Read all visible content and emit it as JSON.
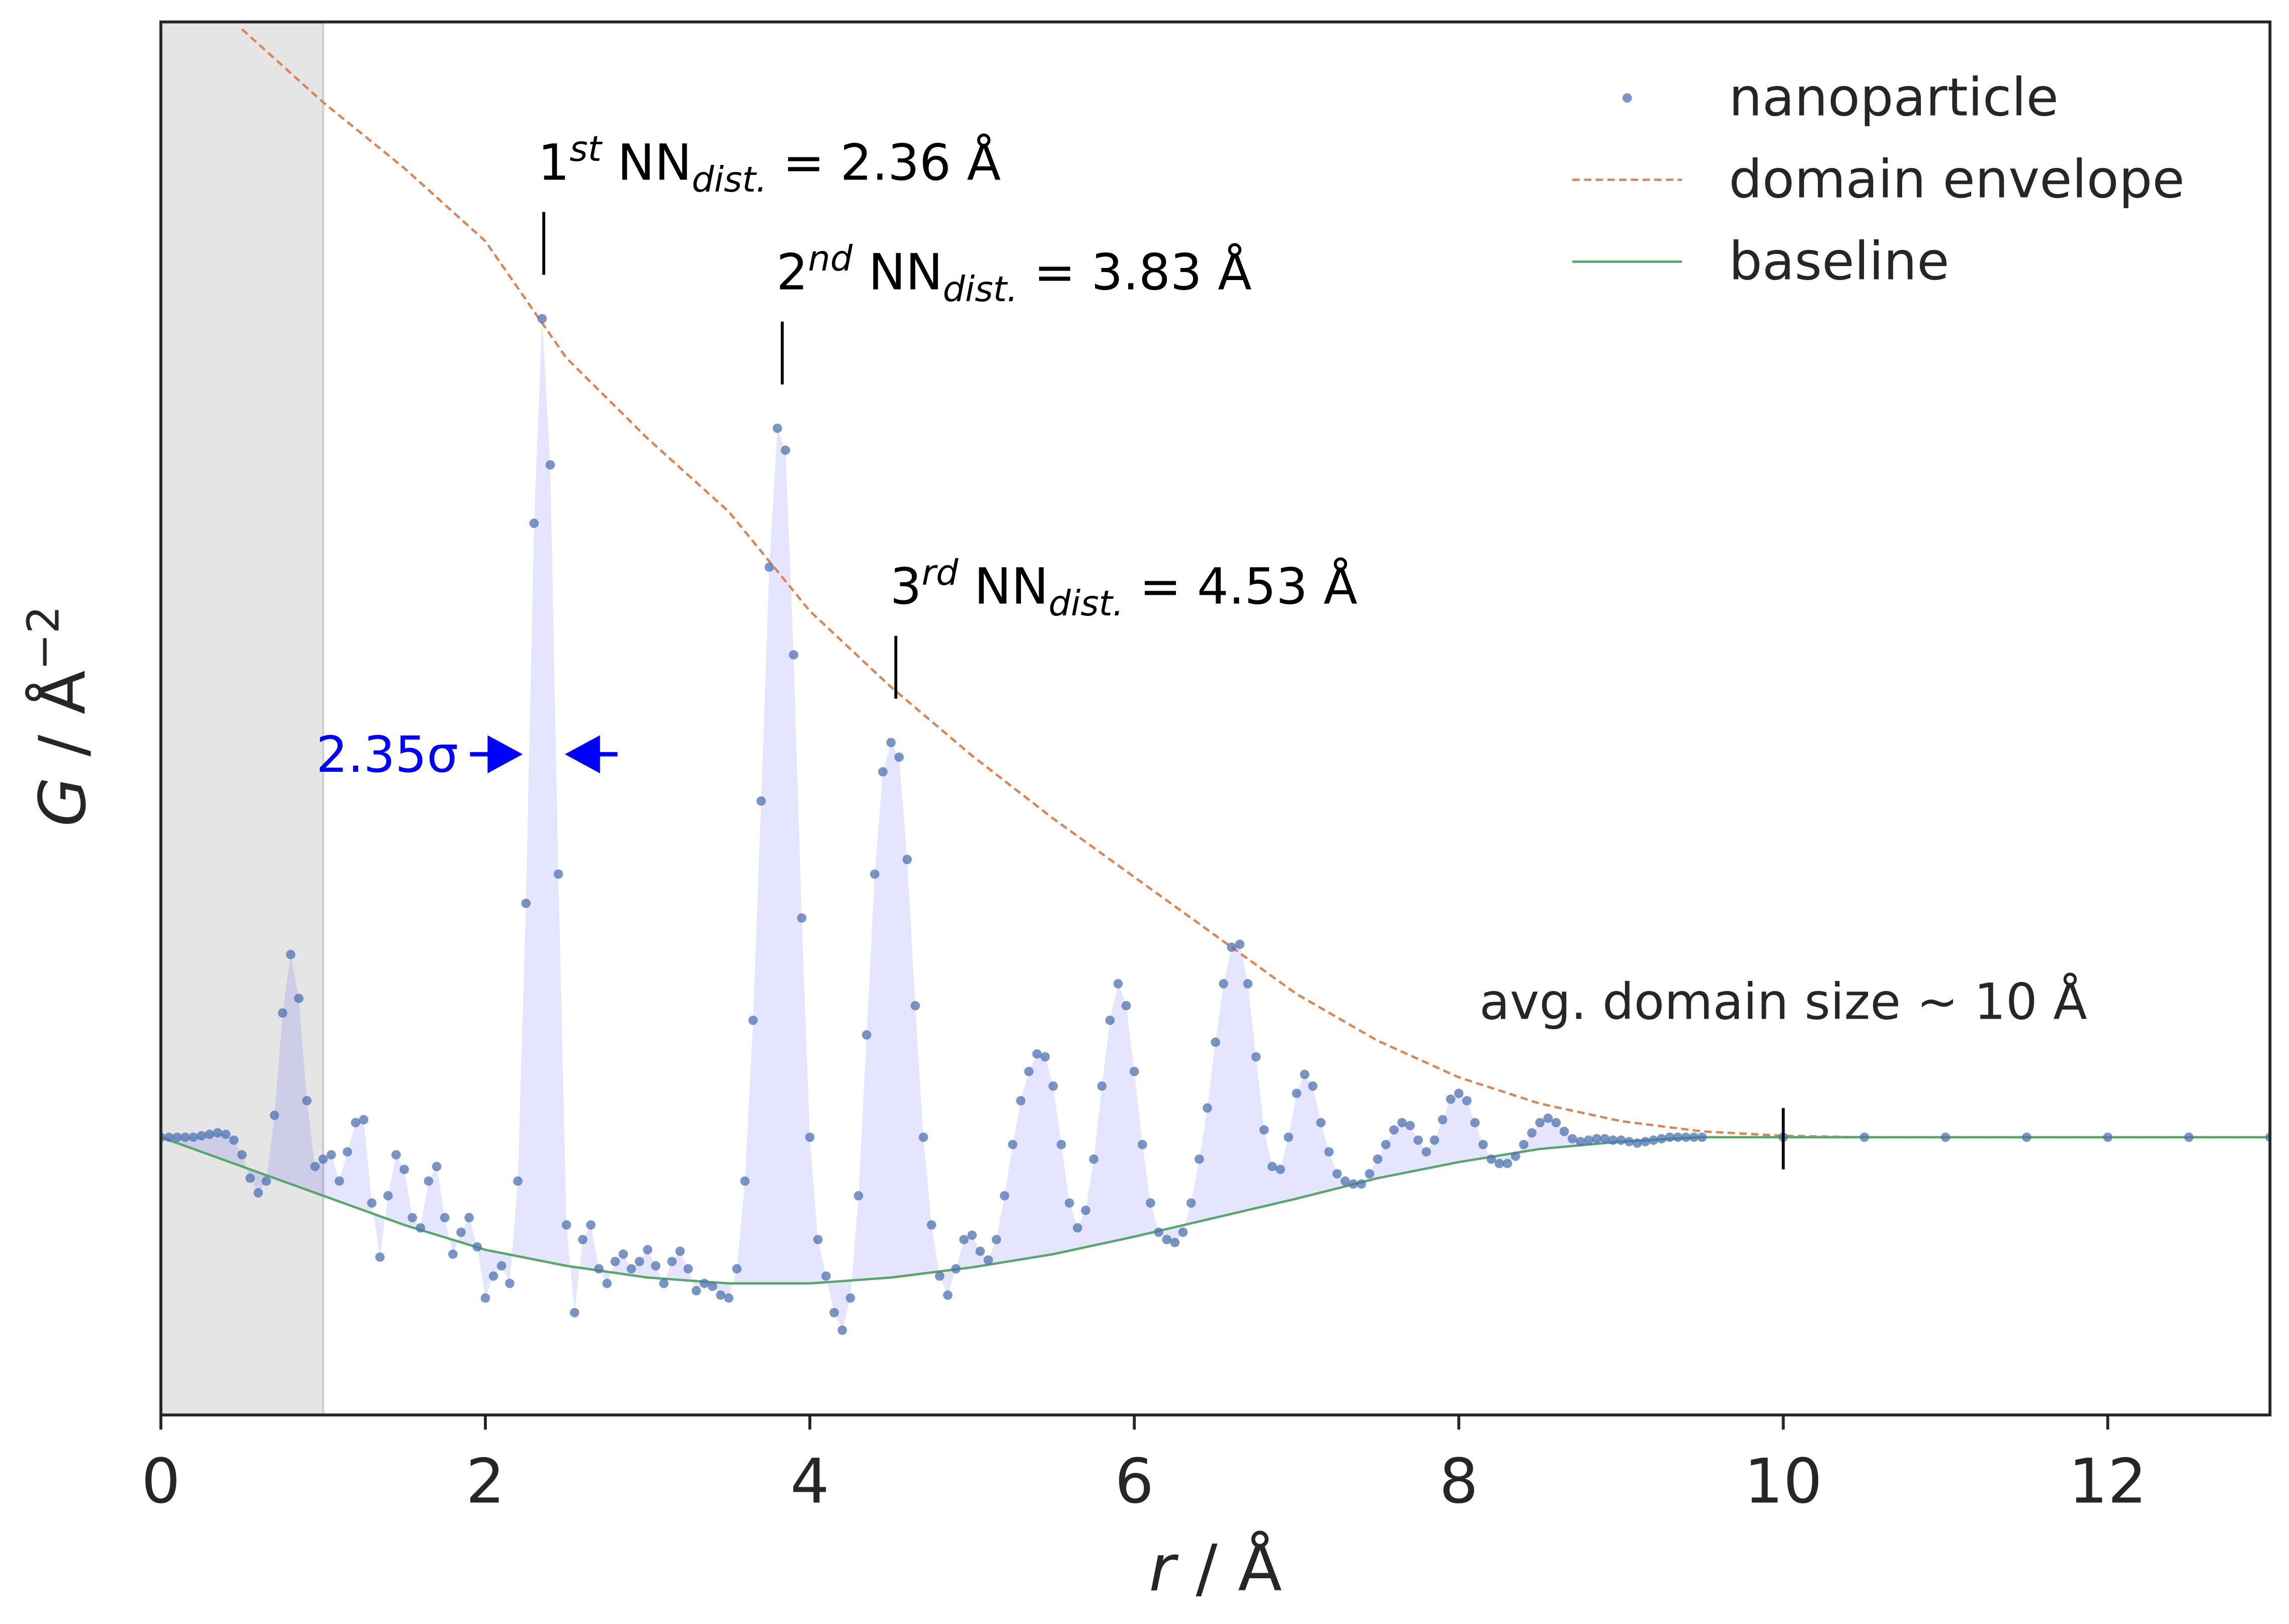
{
  "chart_data": {
    "type": "line",
    "xlabel": {
      "symbol": "r",
      "rest": " / Å"
    },
    "ylabel": {
      "symbol": "G",
      "rest": " / Å",
      "sup": "−2"
    },
    "xlim": [
      0,
      13
    ],
    "ylim": [
      -1.9,
      7.63
    ],
    "xticks": [
      0,
      2,
      4,
      6,
      8,
      10,
      12
    ],
    "shaded_xrange": [
      0,
      1
    ],
    "legend": "upper right",
    "series": [
      {
        "name": "nanoparticle",
        "style": "dots",
        "color": "#4c72b0",
        "x": [
          0,
          0.05,
          0.1,
          0.15,
          0.2,
          0.25,
          0.3,
          0.35,
          0.4,
          0.45,
          0.5,
          0.55,
          0.6,
          0.65,
          0.7,
          0.75,
          0.8,
          0.85,
          0.9,
          0.95,
          1,
          1.05,
          1.1,
          1.15,
          1.2,
          1.25,
          1.3,
          1.35,
          1.4,
          1.45,
          1.5,
          1.55,
          1.6,
          1.65,
          1.7,
          1.75,
          1.8,
          1.85,
          1.9,
          1.95,
          2,
          2.05,
          2.1,
          2.15,
          2.2,
          2.25,
          2.3,
          2.35,
          2.4,
          2.45,
          2.5,
          2.55,
          2.6,
          2.65,
          2.7,
          2.75,
          2.8,
          2.85,
          2.9,
          2.95,
          3,
          3.05,
          3.1,
          3.15,
          3.2,
          3.25,
          3.3,
          3.35,
          3.4,
          3.45,
          3.5,
          3.55,
          3.6,
          3.65,
          3.7,
          3.75,
          3.8,
          3.85,
          3.9,
          3.95,
          4,
          4.05,
          4.1,
          4.15,
          4.2,
          4.25,
          4.3,
          4.35,
          4.4,
          4.45,
          4.5,
          4.55,
          4.6,
          4.65,
          4.7,
          4.75,
          4.8,
          4.85,
          4.9,
          4.95,
          5,
          5.05,
          5.1,
          5.15,
          5.2,
          5.25,
          5.3,
          5.35,
          5.4,
          5.45,
          5.5,
          5.55,
          5.6,
          5.65,
          5.7,
          5.75,
          5.8,
          5.85,
          5.9,
          5.95,
          6,
          6.05,
          6.1,
          6.15,
          6.2,
          6.25,
          6.3,
          6.35,
          6.4,
          6.45,
          6.5,
          6.55,
          6.6,
          6.65,
          6.7,
          6.75,
          6.8,
          6.85,
          6.9,
          6.95,
          7,
          7.05,
          7.1,
          7.15,
          7.2,
          7.25,
          7.3,
          7.35,
          7.4,
          7.45,
          7.5,
          7.55,
          7.6,
          7.65,
          7.7,
          7.75,
          7.8,
          7.85,
          7.9,
          7.95,
          8,
          8.05,
          8.1,
          8.15,
          8.2,
          8.25,
          8.3,
          8.35,
          8.4,
          8.45,
          8.5,
          8.55,
          8.6,
          8.65,
          8.7,
          8.75,
          8.8,
          8.85,
          8.9,
          8.95,
          9,
          9.05,
          9.1,
          9.15,
          9.2,
          9.25,
          9.3,
          9.35,
          9.4,
          9.45,
          9.5,
          10,
          10.5,
          11,
          11.5,
          12,
          12.5,
          13
        ],
        "values": [
          0,
          0,
          0,
          0,
          0,
          0.01,
          0.02,
          0.03,
          0.02,
          -0.02,
          -0.12,
          -0.28,
          -0.38,
          -0.3,
          0.15,
          0.85,
          1.25,
          0.95,
          0.25,
          -0.2,
          -0.15,
          -0.12,
          -0.3,
          -0.1,
          0.1,
          0.12,
          -0.45,
          -0.82,
          -0.4,
          -0.12,
          -0.22,
          -0.55,
          -0.62,
          -0.3,
          -0.2,
          -0.55,
          -0.8,
          -0.65,
          -0.55,
          -0.75,
          -1.1,
          -0.95,
          -0.88,
          -1.0,
          -0.3,
          1.6,
          4.2,
          5.6,
          4.6,
          1.8,
          -0.6,
          -1.2,
          -0.7,
          -0.6,
          -0.9,
          -1.0,
          -0.85,
          -0.8,
          -0.9,
          -0.85,
          -0.77,
          -0.88,
          -1.0,
          -0.85,
          -0.78,
          -0.9,
          -1.05,
          -1.0,
          -1.02,
          -1.08,
          -1.1,
          -0.9,
          -0.3,
          0.8,
          2.3,
          3.9,
          4.85,
          4.7,
          3.3,
          1.5,
          0,
          -0.7,
          -0.95,
          -1.2,
          -1.32,
          -1.1,
          -0.4,
          0.7,
          1.8,
          2.5,
          2.7,
          2.6,
          1.9,
          0.9,
          0,
          -0.6,
          -0.95,
          -1.08,
          -0.9,
          -0.7,
          -0.67,
          -0.78,
          -0.84,
          -0.7,
          -0.4,
          -0.05,
          0.25,
          0.45,
          0.57,
          0.55,
          0.35,
          -0.05,
          -0.45,
          -0.62,
          -0.5,
          -0.15,
          0.35,
          0.8,
          1.05,
          0.9,
          0.45,
          -0.05,
          -0.45,
          -0.65,
          -0.7,
          -0.72,
          -0.65,
          -0.45,
          -0.15,
          0.2,
          0.65,
          1.05,
          1.3,
          1.32,
          1.05,
          0.55,
          0.05,
          -0.2,
          -0.22,
          0,
          0.3,
          0.43,
          0.35,
          0.1,
          -0.1,
          -0.25,
          -0.3,
          -0.32,
          -0.32,
          -0.25,
          -0.15,
          -0.05,
          0.05,
          0.1,
          0.08,
          -0.02,
          -0.1,
          -0.02,
          0.12,
          0.26,
          0.3,
          0.25,
          0.1,
          -0.05,
          -0.15,
          -0.18,
          -0.18,
          -0.13,
          -0.05,
          0.03,
          0.1,
          0.13,
          0.1,
          0.04,
          -0.01,
          -0.03,
          -0.02,
          -0.01,
          -0.01,
          -0.02,
          -0.02,
          -0.03,
          -0.04,
          -0.03,
          -0.02,
          -0.01,
          0,
          0,
          0,
          0,
          0,
          0,
          0,
          0,
          0,
          0,
          0,
          0
        ]
      },
      {
        "name": "domain envelope",
        "style": "dashed",
        "color": "#dd8452",
        "x": [
          0.5,
          1,
          1.5,
          2,
          2.5,
          3,
          3.5,
          4,
          4.5,
          5,
          5.5,
          6,
          6.5,
          7,
          7.5,
          8,
          8.5,
          9,
          9.5,
          10,
          10.5,
          11,
          11.5,
          12,
          12.5,
          13
        ],
        "values": [
          7.58,
          7.08,
          6.63,
          6.13,
          5.33,
          4.78,
          4.28,
          3.6,
          3.08,
          2.61,
          2.18,
          1.78,
          1.38,
          0.98,
          0.66,
          0.41,
          0.23,
          0.11,
          0.04,
          0.01,
          0,
          0,
          0,
          0,
          0,
          0
        ]
      },
      {
        "name": "baseline",
        "style": "solid",
        "color": "#55a868",
        "x": [
          0,
          0.5,
          1,
          1.5,
          2,
          2.5,
          3,
          3.5,
          4,
          4.5,
          5,
          5.5,
          6,
          6.5,
          7,
          7.5,
          8,
          8.5,
          9,
          9.5,
          10,
          10.5,
          11,
          11.5,
          12,
          12.5,
          13
        ],
        "values": [
          0,
          -0.2,
          -0.4,
          -0.6,
          -0.77,
          -0.88,
          -0.96,
          -1.0,
          -1.0,
          -0.96,
          -0.89,
          -0.8,
          -0.68,
          -0.55,
          -0.42,
          -0.28,
          -0.17,
          -0.08,
          -0.03,
          0,
          0,
          0,
          0,
          0,
          0,
          0,
          0
        ]
      }
    ],
    "annotations": [
      {
        "ordinal": "1",
        "suffix": "st",
        "label": " NN",
        "subscript": "dist.",
        "equals": " = 2.36 Å",
        "x": 2.36
      },
      {
        "ordinal": "2",
        "suffix": "nd",
        "label": " NN",
        "subscript": "dist.",
        "equals": " = 3.83 Å",
        "x": 3.83
      },
      {
        "ordinal": "3",
        "suffix": "rd",
        "label": " NN",
        "subscript": "dist.",
        "equals": " = 4.53 Å",
        "x": 4.53
      }
    ],
    "domain_note": {
      "text": "avg. domain size ~ 10 Å",
      "x": 10
    },
    "fwhm": {
      "text": "2.35σ",
      "color": "#0000ff",
      "x_left": 2.23,
      "x_right": 2.49,
      "y": 2.62
    }
  }
}
